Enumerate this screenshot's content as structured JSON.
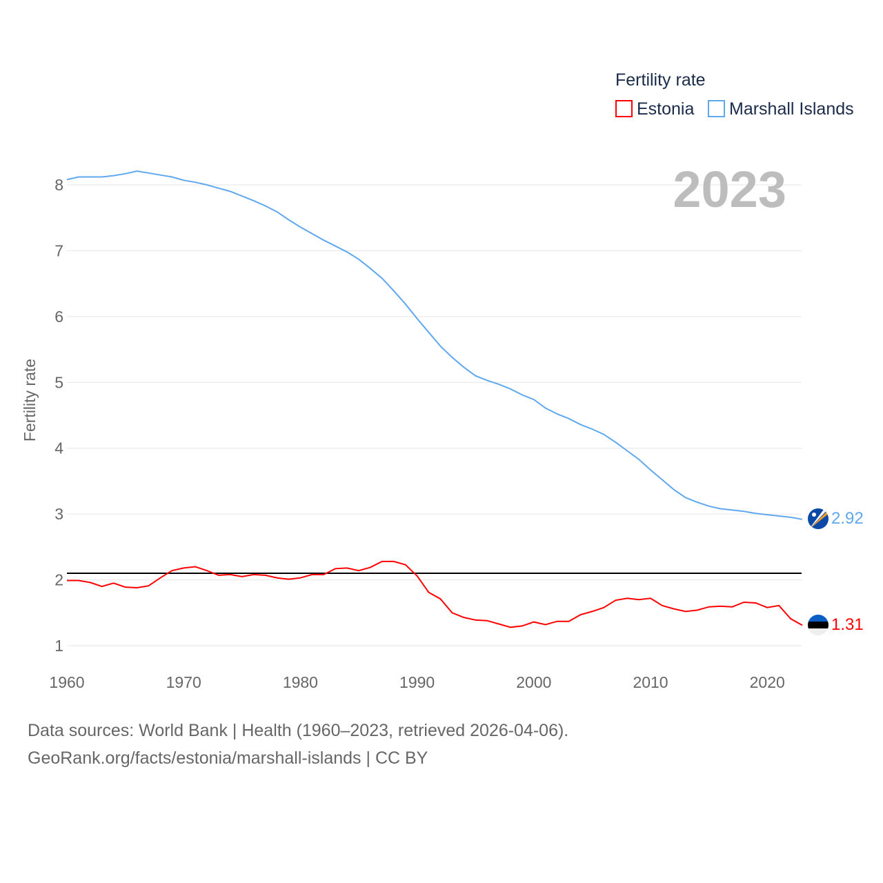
{
  "chart_data": {
    "type": "line",
    "title": "Fertility rate",
    "year_label": "2023",
    "ylabel": "Fertility rate",
    "xlabel": "",
    "xlim": [
      1960,
      2023
    ],
    "ylim": [
      0.7,
      8.4
    ],
    "x_ticks": [
      1960,
      1970,
      1980,
      1990,
      2000,
      2010,
      2020
    ],
    "y_ticks": [
      1,
      2,
      3,
      4,
      5,
      6,
      7,
      8
    ],
    "grid": true,
    "legend_position": "top-right",
    "reference_line": {
      "value": 2.1,
      "color": "#000000"
    },
    "x": [
      1960,
      1961,
      1962,
      1963,
      1964,
      1965,
      1966,
      1967,
      1968,
      1969,
      1970,
      1971,
      1972,
      1973,
      1974,
      1975,
      1976,
      1977,
      1978,
      1979,
      1980,
      1981,
      1982,
      1983,
      1984,
      1985,
      1986,
      1987,
      1988,
      1989,
      1990,
      1991,
      1992,
      1993,
      1994,
      1995,
      1996,
      1997,
      1998,
      1999,
      2000,
      2001,
      2002,
      2003,
      2004,
      2005,
      2006,
      2007,
      2008,
      2009,
      2010,
      2011,
      2012,
      2013,
      2014,
      2015,
      2016,
      2017,
      2018,
      2019,
      2020,
      2021,
      2022,
      2023
    ],
    "series": [
      {
        "name": "Estonia",
        "color": "#ff0000",
        "end_label": "1.31",
        "values": [
          1.99,
          1.99,
          1.96,
          1.9,
          1.95,
          1.89,
          1.88,
          1.91,
          2.03,
          2.14,
          2.18,
          2.2,
          2.14,
          2.07,
          2.08,
          2.05,
          2.08,
          2.07,
          2.03,
          2.01,
          2.03,
          2.08,
          2.08,
          2.17,
          2.18,
          2.14,
          2.19,
          2.28,
          2.28,
          2.23,
          2.06,
          1.81,
          1.71,
          1.5,
          1.43,
          1.39,
          1.38,
          1.33,
          1.28,
          1.3,
          1.36,
          1.32,
          1.37,
          1.37,
          1.47,
          1.52,
          1.58,
          1.69,
          1.72,
          1.7,
          1.72,
          1.61,
          1.56,
          1.52,
          1.54,
          1.59,
          1.6,
          1.59,
          1.66,
          1.65,
          1.58,
          1.61,
          1.41,
          1.31
        ]
      },
      {
        "name": "Marshall Islands",
        "color": "#5fa8ee",
        "end_label": "2.92",
        "values": [
          8.08,
          8.12,
          8.12,
          8.12,
          8.14,
          8.17,
          8.21,
          8.18,
          8.15,
          8.12,
          8.07,
          8.04,
          8.0,
          7.95,
          7.9,
          7.83,
          7.76,
          7.68,
          7.59,
          7.47,
          7.36,
          7.26,
          7.16,
          7.07,
          6.98,
          6.87,
          6.73,
          6.58,
          6.39,
          6.19,
          5.97,
          5.76,
          5.55,
          5.38,
          5.23,
          5.1,
          5.03,
          4.97,
          4.9,
          4.81,
          4.74,
          4.61,
          4.52,
          4.45,
          4.36,
          4.29,
          4.21,
          4.09,
          3.96,
          3.83,
          3.67,
          3.52,
          3.37,
          3.25,
          3.18,
          3.12,
          3.08,
          3.06,
          3.04,
          3.01,
          2.99,
          2.97,
          2.95,
          2.92
        ]
      }
    ]
  },
  "footer": {
    "line1": "Data sources: World Bank | Health (1960–2023, retrieved 2026-04-06).",
    "line2": "GeoRank.org/facts/estonia/marshall-islands | CC BY"
  }
}
